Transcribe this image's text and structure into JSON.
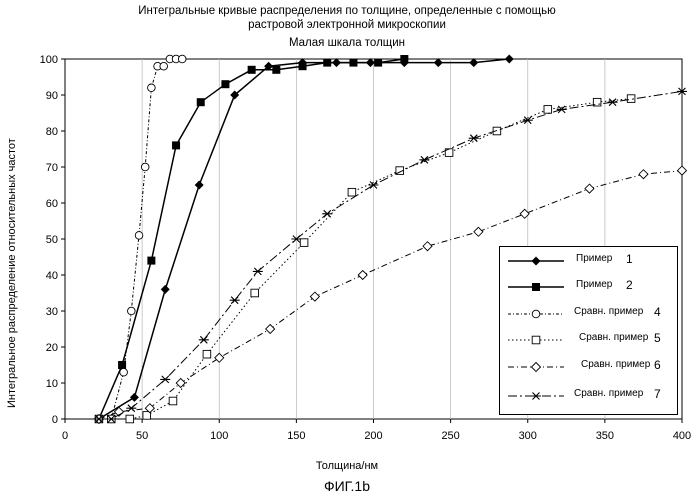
{
  "titles": {
    "line1": "Интегральные кривые распределения по толщине, определенные с помощью",
    "line2": "растровой электронной микроскопии",
    "line3": "Малая шкала толщин"
  },
  "caption": "ФИГ.1b",
  "chart_data": {
    "type": "line",
    "title": "Интегральные кривые распределения по толщине, определенные с помощью растровой электронной микроскопии",
    "subtitle": "Малая шкала толщин",
    "xlabel": "Толщина/нм",
    "ylabel": "Интегральное распределение относительных частот",
    "xlim": [
      0,
      400
    ],
    "ylim": [
      0,
      100
    ],
    "xticks": [
      0,
      50,
      100,
      150,
      200,
      250,
      300,
      350,
      400
    ],
    "yticks": [
      0,
      10,
      20,
      30,
      40,
      50,
      60,
      70,
      80,
      90,
      100
    ],
    "grid": "vertical",
    "legend_position": "bottom-right",
    "series": [
      {
        "name": "Пример",
        "number": "1",
        "marker": "filled-diamond",
        "dash": "solid",
        "x": [
          22,
          45,
          65,
          87,
          110,
          132,
          154,
          176,
          198,
          220,
          242,
          265,
          288
        ],
        "y": [
          0,
          6,
          36,
          65,
          90,
          98,
          99,
          99,
          99,
          99,
          99,
          99,
          100
        ]
      },
      {
        "name": "Пример",
        "number": "2",
        "marker": "filled-square",
        "dash": "solid",
        "x": [
          22,
          37,
          56,
          72,
          88,
          104,
          121,
          137,
          154,
          170,
          187,
          203,
          220
        ],
        "y": [
          0,
          15,
          44,
          76,
          88,
          93,
          97,
          97,
          98,
          99,
          99,
          99,
          100
        ]
      },
      {
        "name": "Сравн. пример",
        "number": "4",
        "marker": "open-circle",
        "dash": "dash-dot-fine",
        "x": [
          22,
          30,
          38,
          43,
          48,
          52,
          56,
          60,
          64,
          68,
          72,
          76
        ],
        "y": [
          0,
          0,
          13,
          30,
          51,
          70,
          92,
          98,
          98,
          100,
          100,
          100
        ]
      },
      {
        "name": "Сравн. пример",
        "number": "5",
        "marker": "open-square",
        "dash": "dotted",
        "x": [
          22,
          30,
          42,
          53,
          70,
          92,
          123,
          155,
          186,
          217,
          249,
          280,
          313,
          345,
          367
        ],
        "y": [
          0,
          0,
          0,
          1,
          5,
          18,
          35,
          49,
          63,
          69,
          74,
          80,
          86,
          88,
          89
        ]
      },
      {
        "name": "Сравн. пример",
        "number": "6",
        "marker": "open-diamond",
        "dash": "dash-dot",
        "x": [
          22,
          35,
          55,
          75,
          100,
          133,
          162,
          193,
          235,
          268,
          298,
          340,
          375,
          400
        ],
        "y": [
          0,
          2,
          3,
          10,
          17,
          25,
          34,
          40,
          48,
          52,
          57,
          64,
          68,
          69
        ]
      },
      {
        "name": "Сравн. пример",
        "number": "7",
        "marker": "star",
        "dash": "dash-dot-long",
        "x": [
          22,
          30,
          43,
          65,
          90,
          110,
          125,
          150,
          170,
          200,
          233,
          265,
          300,
          322,
          355,
          400
        ],
        "y": [
          0,
          0,
          3,
          11,
          22,
          33,
          41,
          50,
          57,
          65,
          72,
          78,
          83,
          86,
          88,
          91
        ]
      }
    ]
  }
}
